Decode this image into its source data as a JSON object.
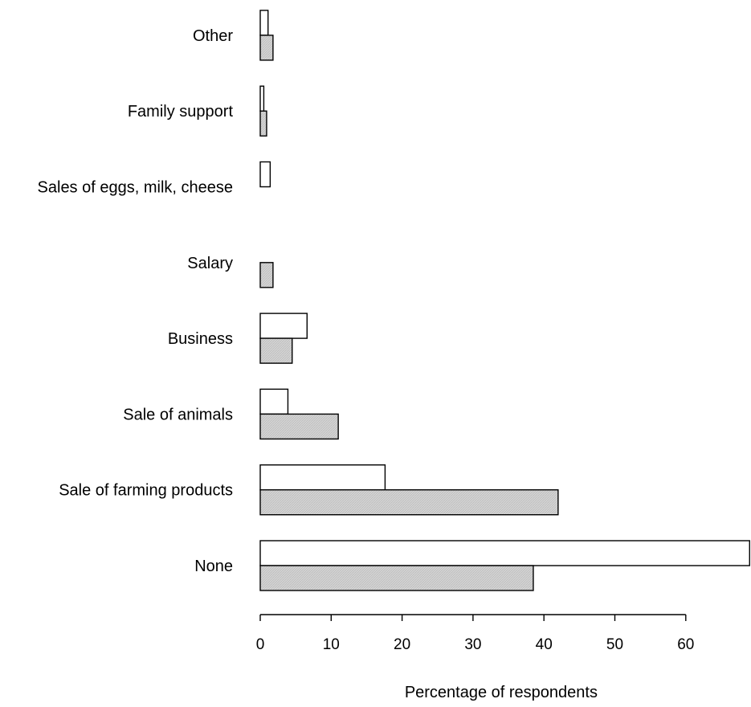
{
  "chart_data": {
    "type": "bar",
    "orientation": "horizontal",
    "categories": [
      "None",
      "Sale of farming products",
      "Sale of animals",
      "Business",
      "Salary",
      "Sales of eggs, milk, cheese",
      "Family support",
      "Other"
    ],
    "series": [
      {
        "fill": "#ffffff",
        "values": [
          69.0,
          17.6,
          3.9,
          6.6,
          0.0,
          1.4,
          0.5,
          1.1
        ]
      },
      {
        "fill": "#d3d3d3",
        "values": [
          38.5,
          42.0,
          11.0,
          4.5,
          1.8,
          0.0,
          0.9,
          1.8
        ]
      }
    ],
    "xlabel": "Percentage of respondents",
    "ylabel": "",
    "xlim": [
      0,
      69
    ],
    "xticks": [
      0,
      10,
      20,
      30,
      40,
      50,
      60
    ],
    "grid": false,
    "legend": "none"
  }
}
